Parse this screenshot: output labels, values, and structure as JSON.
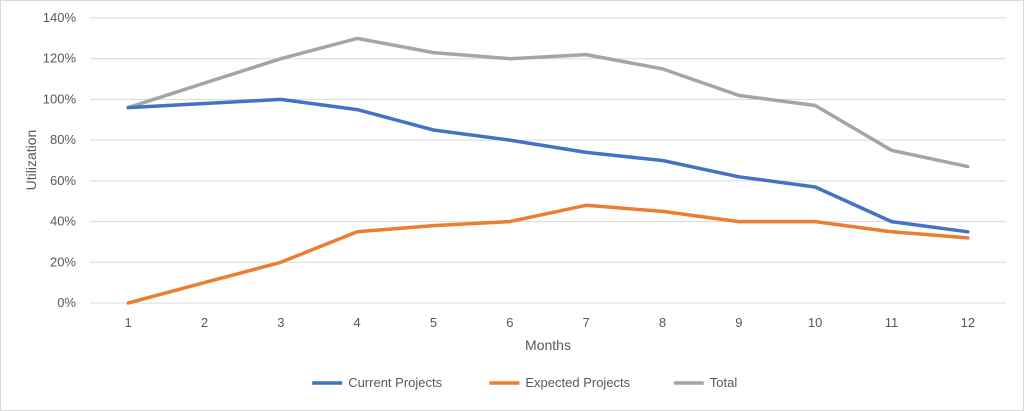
{
  "chart_data": {
    "type": "line",
    "title": "",
    "xlabel": "Months",
    "ylabel": "Utilization",
    "x": [
      1,
      2,
      3,
      4,
      5,
      6,
      7,
      8,
      9,
      10,
      11,
      12
    ],
    "ylim": [
      0,
      140
    ],
    "yticks": [
      "0%",
      "20%",
      "40%",
      "60%",
      "80%",
      "100%",
      "120%",
      "140%"
    ],
    "grid": true,
    "legend_position": "bottom",
    "series": [
      {
        "name": "Current Projects",
        "color": "#4472c4",
        "values": [
          96,
          98,
          100,
          95,
          85,
          80,
          74,
          70,
          62,
          57,
          40,
          35
        ]
      },
      {
        "name": "Expected Projects",
        "color": "#ed7d31",
        "values": [
          0,
          10,
          20,
          35,
          38,
          40,
          48,
          45,
          40,
          40,
          35,
          32
        ]
      },
      {
        "name": "Total",
        "color": "#a5a5a5",
        "values": [
          96,
          108,
          120,
          130,
          123,
          120,
          122,
          115,
          102,
          97,
          75,
          67
        ]
      }
    ]
  }
}
